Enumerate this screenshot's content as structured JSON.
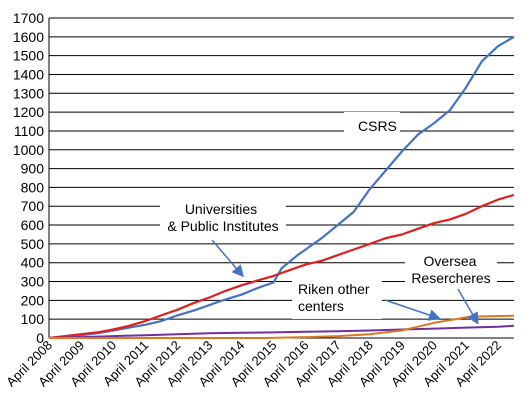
{
  "chart_data": {
    "type": "line",
    "title": "",
    "xlabel": "",
    "ylabel": "",
    "ylim": [
      0,
      1700
    ],
    "yticks": [
      0,
      100,
      200,
      300,
      400,
      500,
      600,
      700,
      800,
      900,
      1000,
      1100,
      1200,
      1300,
      1400,
      1500,
      1600,
      1700
    ],
    "grid": "horizontal",
    "legend": "none",
    "x_categories": [
      "April 2008",
      "April 2009",
      "April 2010",
      "April 2011",
      "April 2012",
      "April 2013",
      "April 2014",
      "April 2015",
      "April 2016",
      "April 2017",
      "April 2018",
      "April 2019",
      "April 2020",
      "April 2021",
      "April 2022"
    ],
    "x_range": [
      "2008-04",
      "2022-10"
    ],
    "series": [
      {
        "label": "CSRS",
        "color": "#4472C4",
        "points": [
          [
            "2008-04",
            0
          ],
          [
            "2008-10",
            5
          ],
          [
            "2009-04",
            15
          ],
          [
            "2009-10",
            25
          ],
          [
            "2010-04",
            40
          ],
          [
            "2010-10",
            55
          ],
          [
            "2011-04",
            70
          ],
          [
            "2011-10",
            90
          ],
          [
            "2012-04",
            120
          ],
          [
            "2012-10",
            145
          ],
          [
            "2013-04",
            175
          ],
          [
            "2013-10",
            205
          ],
          [
            "2014-04",
            230
          ],
          [
            "2014-10",
            265
          ],
          [
            "2015-04",
            295
          ],
          [
            "2015-07",
            370
          ],
          [
            "2016-01",
            440
          ],
          [
            "2016-04",
            470
          ],
          [
            "2016-10",
            530
          ],
          [
            "2017-04",
            600
          ],
          [
            "2017-10",
            670
          ],
          [
            "2018-04",
            790
          ],
          [
            "2018-10",
            890
          ],
          [
            "2019-04",
            990
          ],
          [
            "2019-10",
            1080
          ],
          [
            "2020-04",
            1140
          ],
          [
            "2020-10",
            1210
          ],
          [
            "2021-04",
            1330
          ],
          [
            "2021-10",
            1470
          ],
          [
            "2022-04",
            1550
          ],
          [
            "2022-10",
            1600
          ]
        ]
      },
      {
        "label": "Universities & Public Institutes",
        "color": "#E02020",
        "points": [
          [
            "2008-04",
            0
          ],
          [
            "2008-10",
            10
          ],
          [
            "2009-04",
            20
          ],
          [
            "2009-10",
            30
          ],
          [
            "2010-04",
            45
          ],
          [
            "2010-10",
            65
          ],
          [
            "2011-04",
            90
          ],
          [
            "2011-10",
            120
          ],
          [
            "2012-04",
            150
          ],
          [
            "2012-10",
            185
          ],
          [
            "2013-04",
            215
          ],
          [
            "2013-10",
            250
          ],
          [
            "2014-04",
            280
          ],
          [
            "2014-10",
            305
          ],
          [
            "2015-04",
            330
          ],
          [
            "2015-10",
            360
          ],
          [
            "2016-04",
            390
          ],
          [
            "2016-10",
            410
          ],
          [
            "2017-04",
            440
          ],
          [
            "2017-10",
            470
          ],
          [
            "2018-04",
            500
          ],
          [
            "2018-10",
            530
          ],
          [
            "2019-04",
            550
          ],
          [
            "2019-10",
            580
          ],
          [
            "2020-04",
            610
          ],
          [
            "2020-10",
            630
          ],
          [
            "2021-04",
            660
          ],
          [
            "2021-10",
            700
          ],
          [
            "2022-04",
            735
          ],
          [
            "2022-10",
            760
          ]
        ]
      },
      {
        "label": "Riken other centers",
        "color": "#7030A0",
        "points": [
          [
            "2008-04",
            0
          ],
          [
            "2009-04",
            5
          ],
          [
            "2010-04",
            10
          ],
          [
            "2011-04",
            15
          ],
          [
            "2012-04",
            20
          ],
          [
            "2013-04",
            25
          ],
          [
            "2014-04",
            28
          ],
          [
            "2015-04",
            30
          ],
          [
            "2016-04",
            33
          ],
          [
            "2017-04",
            36
          ],
          [
            "2018-04",
            40
          ],
          [
            "2019-04",
            45
          ],
          [
            "2020-04",
            50
          ],
          [
            "2021-04",
            55
          ],
          [
            "2022-04",
            60
          ],
          [
            "2022-10",
            65
          ]
        ]
      },
      {
        "label": "Oversea Resercheres",
        "color": "#D97A20",
        "points": [
          [
            "2008-04",
            0
          ],
          [
            "2015-01",
            0
          ],
          [
            "2016-04",
            5
          ],
          [
            "2017-04",
            10
          ],
          [
            "2018-04",
            20
          ],
          [
            "2019-04",
            40
          ],
          [
            "2019-10",
            60
          ],
          [
            "2020-04",
            80
          ],
          [
            "2020-10",
            95
          ],
          [
            "2021-04",
            110
          ],
          [
            "2021-10",
            115
          ],
          [
            "2022-10",
            118
          ]
        ]
      }
    ],
    "annotations": {
      "csrs": "CSRS",
      "univ_line1": "Universities",
      "univ_line2": "& Public Institutes",
      "riken_line1": "Riken other",
      "riken_line2": "centers",
      "oversea_line1": "Oversea",
      "oversea_line2": "Resercheres"
    }
  }
}
